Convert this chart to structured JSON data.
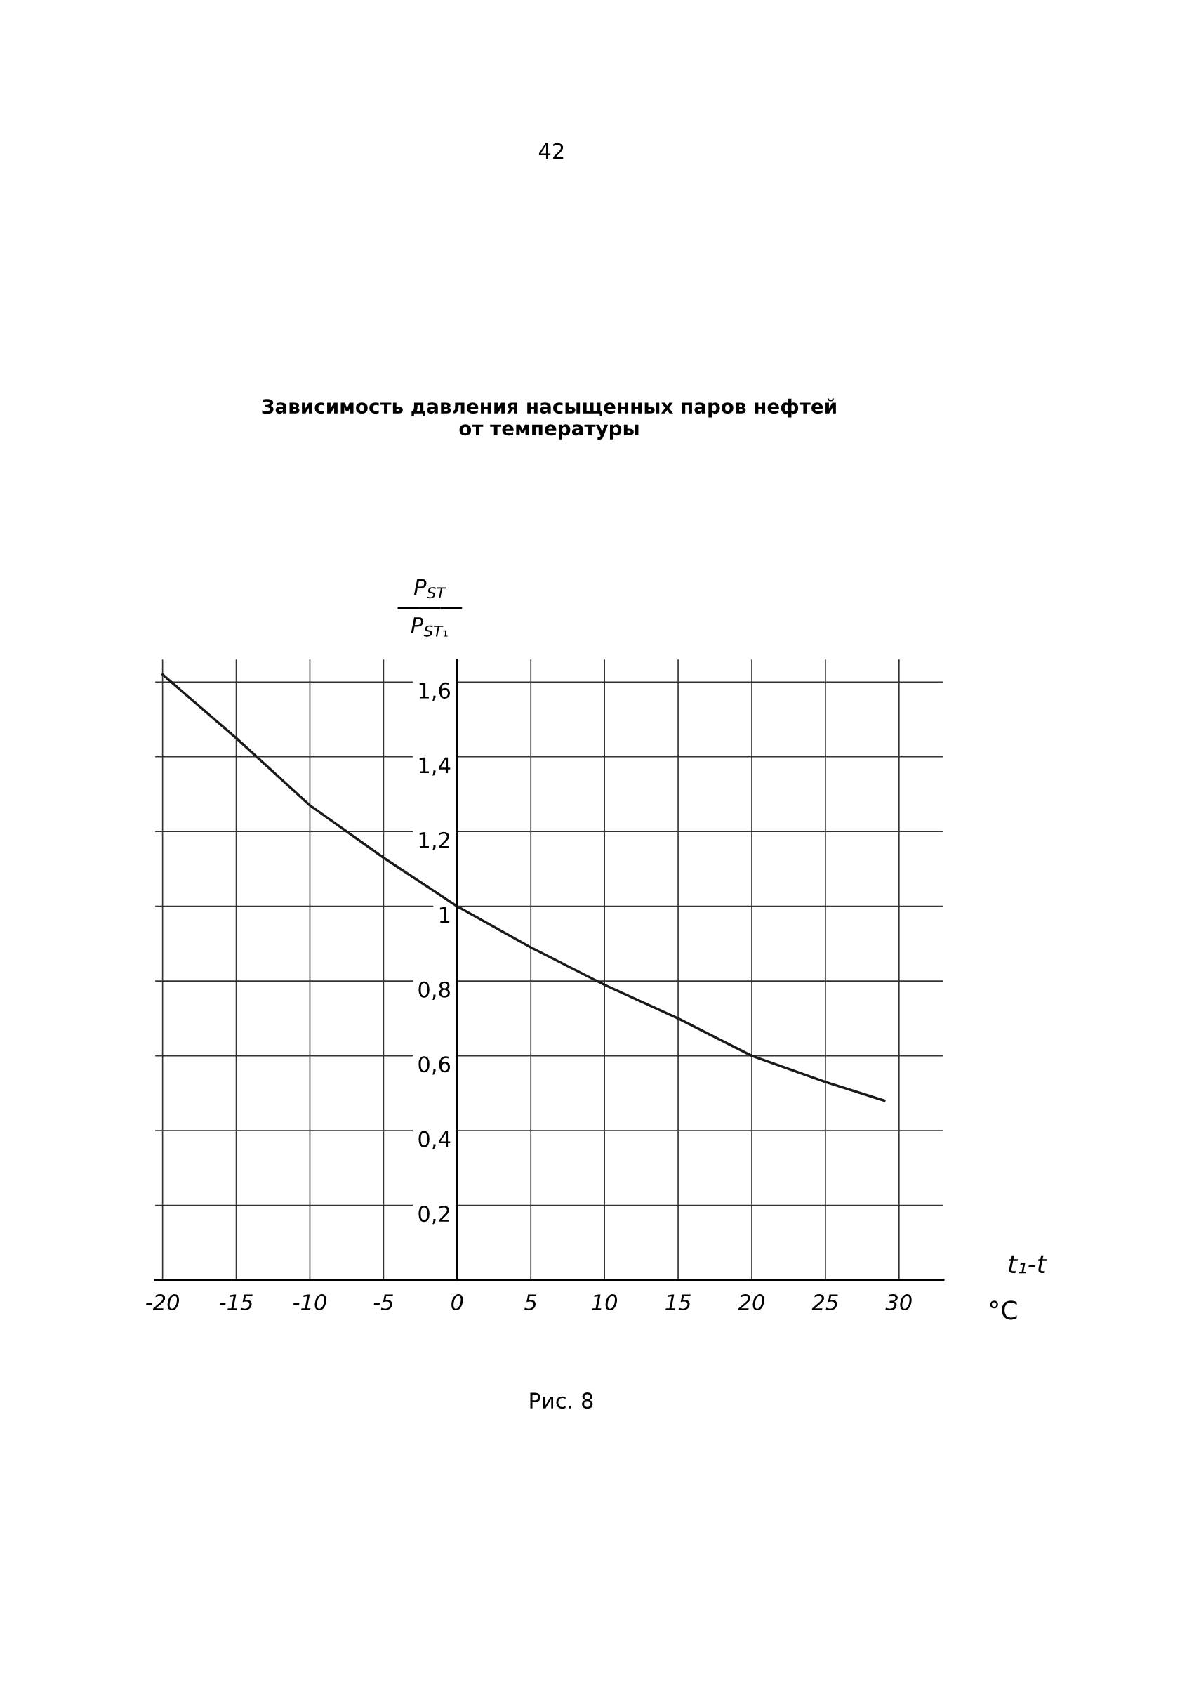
{
  "chart_data": {
    "type": "line",
    "title": "Зависимость давления насыщенных паров нефтей\nот температуры",
    "xlabel": "t₁-t",
    "ylabel": "P$_{ST}$\n―――\nP$_{ST₁}$",
    "annotations": [
      "42",
      "°C",
      "Рис. 8"
    ],
    "x": [
      -20,
      -15,
      -10,
      -5,
      0,
      5,
      10,
      15,
      20,
      25,
      29
    ],
    "series": [
      {
        "color": "#1a1a1a",
        "values": [
          1.62,
          1.45,
          1.27,
          1.13,
          1.0,
          0.89,
          0.79,
          0.7,
          0.6,
          0.53,
          0.48
        ]
      }
    ],
    "xlim": [
      -20.5,
      33
    ],
    "ylim": [
      0,
      1.66
    ],
    "xticks": [
      -20,
      -15,
      -10,
      -5,
      0,
      5,
      10,
      15,
      20,
      25,
      30
    ],
    "yticks": [
      {
        "value": 0,
        "label": null
      },
      {
        "value": 0.2,
        "label": "0,2"
      },
      {
        "value": 0.4,
        "label": "0,4"
      },
      {
        "value": 0.6,
        "label": "0,6"
      },
      {
        "value": 0.8,
        "label": "0,8"
      },
      {
        "value": 1,
        "label": "1"
      },
      {
        "value": 1.2,
        "label": "1,2"
      },
      {
        "value": 1.4,
        "label": "1,4"
      },
      {
        "value": 1.6,
        "label": "1,6"
      }
    ],
    "grid": true,
    "line_style": "solid",
    "marker": "none"
  }
}
